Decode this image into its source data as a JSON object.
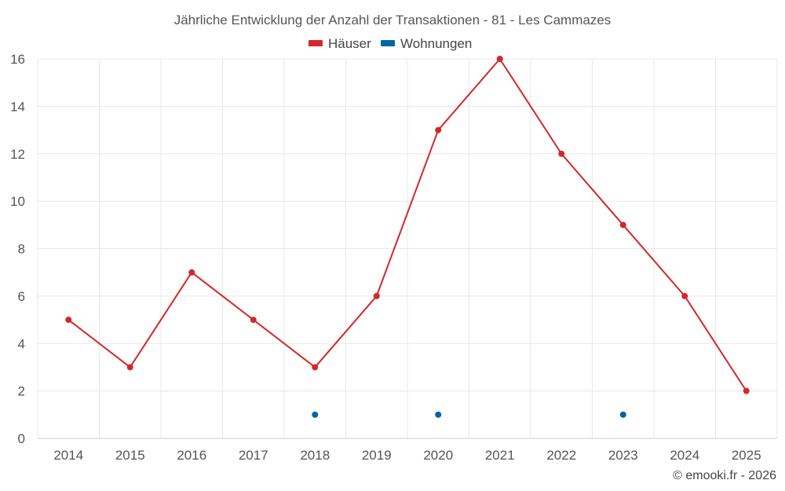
{
  "chart_data": {
    "type": "line",
    "title": "Jährliche Entwicklung der Anzahl der Transaktionen - 81 - Les Cammazes",
    "categories": [
      "2014",
      "2015",
      "2016",
      "2017",
      "2018",
      "2019",
      "2020",
      "2021",
      "2022",
      "2023",
      "2024",
      "2025"
    ],
    "series": [
      {
        "name": "Häuser",
        "color": "#d62728",
        "values": [
          5,
          3,
          7,
          5,
          3,
          6,
          13,
          16,
          12,
          9,
          6,
          2
        ],
        "line": true
      },
      {
        "name": "Wohnungen",
        "color": "#0066a1",
        "values": [
          null,
          null,
          null,
          null,
          1,
          null,
          1,
          null,
          null,
          1,
          null,
          null
        ],
        "line": false
      }
    ],
    "yticks": [
      "0",
      "2",
      "4",
      "6",
      "8",
      "10",
      "12",
      "14",
      "16"
    ],
    "ylim": [
      0,
      16
    ],
    "grid": true,
    "legend_position": "top-center",
    "credit": "© emooki.fr - 2026"
  }
}
